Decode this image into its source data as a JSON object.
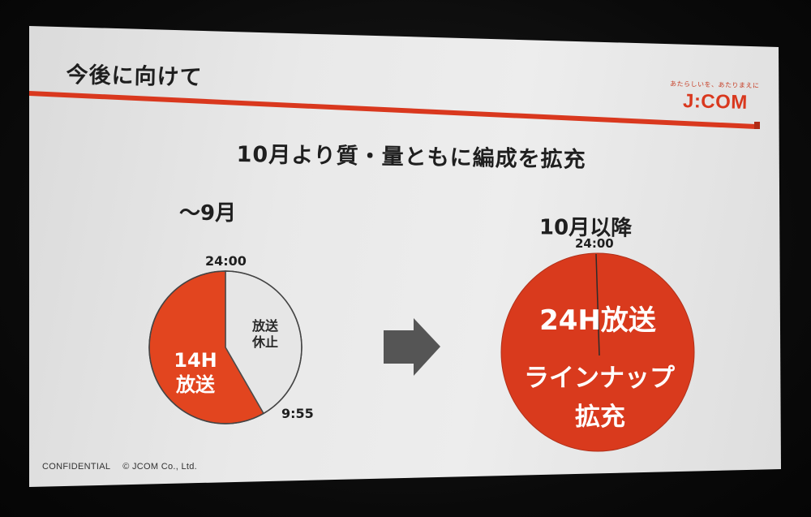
{
  "slide": {
    "title": "今後に向けて",
    "tagline": "あたらしいを、あたりまえに",
    "logo": "J:COM",
    "subtitle": "10月より質・量ともに編成を拡充",
    "footer": {
      "confidential": "CONFIDENTIAL",
      "copyright": "© JCOM Co., Ltd."
    }
  },
  "left_panel": {
    "heading": "〜9月",
    "top_time": "24:00",
    "end_time": "9:55",
    "on_air_label_line1": "14H",
    "on_air_label_line2": "放送",
    "off_air_label_line1": "放送",
    "off_air_label_line2": "休止"
  },
  "right_panel": {
    "heading": "10月以降",
    "top_time": "24:00",
    "label_main": "24H放送",
    "label_sub_line1": "ラインナップ",
    "label_sub_line2": "拡充"
  },
  "colors": {
    "accent_red": "#d9381e",
    "pie_on_air_red": "#e2451f",
    "pie_big_red": "#d93a1d",
    "pie_off_air": "#e6e6e6",
    "arrow_gray": "#555555"
  },
  "chart_data": [
    {
      "type": "pie",
      "title": "〜9月",
      "slices": [
        {
          "label": "14H 放送",
          "value": 14,
          "color": "#e2451f"
        },
        {
          "label": "放送 休止",
          "value": 10,
          "color": "#e6e6e6"
        }
      ],
      "annotations": [
        "24:00",
        "9:55"
      ]
    },
    {
      "type": "pie",
      "title": "10月以降",
      "slices": [
        {
          "label": "24H放送",
          "value": 24,
          "color": "#d93a1d"
        }
      ],
      "annotations": [
        "24:00"
      ]
    }
  ]
}
